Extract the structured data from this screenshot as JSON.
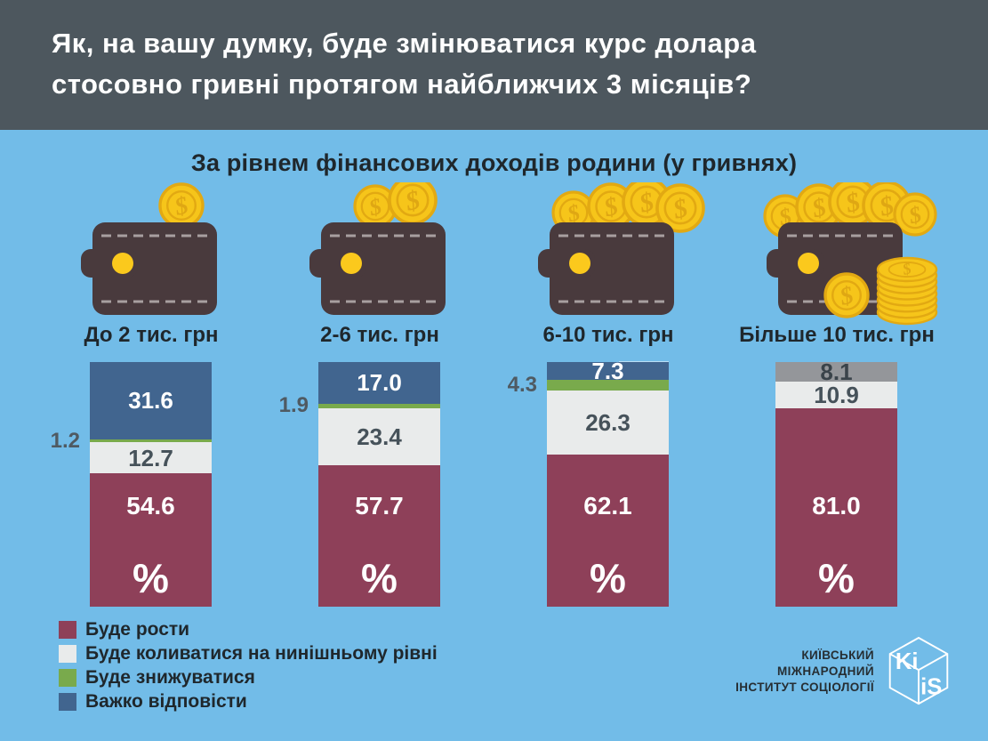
{
  "header": {
    "lines": [
      "Як, на вашу думку, буде змінюватися курс долара",
      "стосовно гривні протягом найближчих 3 місяців?"
    ]
  },
  "subtitle": "За рівнем фінансових доходів родини (у гривнях)",
  "colors": {
    "background": "#72bce8",
    "header_bg": "#4d575e",
    "grow": "#8e4059",
    "fluctuate": "#e9ebeb",
    "decrease": "#79aa4c",
    "difficult": "#41658f",
    "difficult_last_bar": "#94969a",
    "dark_text": "#1f272c",
    "outside_value_text": "#4f5a62",
    "coin_gold": "#f6c51a"
  },
  "chart_data": {
    "type": "bar",
    "stacked": true,
    "unit": "%",
    "title": "Як, на вашу думку, буде змінюватися курс долара стосовно гривні протягом найближчих 3 місяців?",
    "subtitle": "За рівнем фінансових доходів родини (у гривнях)",
    "categories": [
      "До 2 тис. грн",
      "2-6 тис. грн",
      "6-10 тис. грн",
      "Більше 10 тис. грн"
    ],
    "category_icons": [
      "wallet-1-coin-icon",
      "wallet-2-coins-icon",
      "wallet-4-coins-icon",
      "wallet-many-coins-stack-icon"
    ],
    "series": [
      {
        "name": "Буде рости",
        "color": "#8e4059",
        "values": [
          54.6,
          57.7,
          62.1,
          81.0
        ]
      },
      {
        "name": "Буде коливатися на нинішньому рівні",
        "color": "#e9ebeb",
        "values": [
          12.7,
          23.4,
          26.3,
          10.9
        ]
      },
      {
        "name": "Буде знижуватися",
        "color": "#79aa4c",
        "values": [
          1.2,
          1.9,
          4.3,
          0
        ]
      },
      {
        "name": "Важко відповісти",
        "color": "#41658f",
        "colors_per_bar": [
          "#41658f",
          "#41658f",
          "#41658f",
          "#94969a"
        ],
        "values": [
          31.6,
          17.0,
          7.3,
          8.1
        ]
      }
    ],
    "value_labels": "one decimal, inside segments; small green values placed left of bar",
    "ylim": [
      0,
      100
    ],
    "grid": false,
    "legend_position": "bottom-left"
  },
  "legend": {
    "items": [
      {
        "label": "Буде рости",
        "color": "#8e4059"
      },
      {
        "label": "Буде коливатися на нинішньому рівні",
        "color": "#e9ebeb"
      },
      {
        "label": "Буде знижуватися",
        "color": "#79aa4c"
      },
      {
        "label": "Важко відповісти",
        "color": "#41658f"
      }
    ]
  },
  "footer": {
    "org_lines": [
      "КИЇВСЬКИЙ",
      "МІЖНАРОДНИЙ",
      "ІНСТИТУТ СОЦІОЛОГІЇ"
    ],
    "logo_text_top": "Ki",
    "logo_text_bottom": "iS"
  }
}
